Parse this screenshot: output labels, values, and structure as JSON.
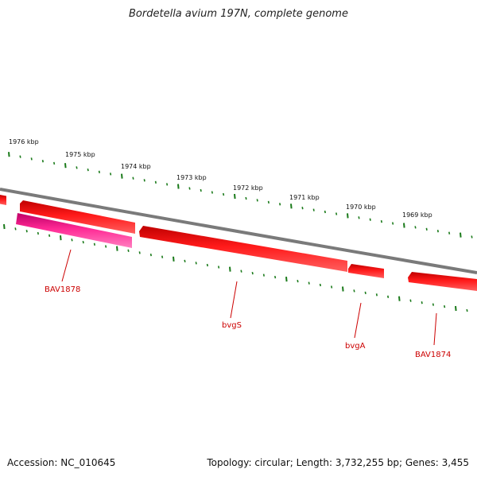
{
  "title": "Bordetella avium 197N, complete genome",
  "footer": {
    "accession": "Accession: NC_010645",
    "stats": "Topology: circular; Length: 3,732,255 bp; Genes: 3,455"
  },
  "ticks": [
    "1976 kbp",
    "1975 kbp",
    "1974 kbp",
    "1973 kbp",
    "1972 kbp",
    "1971 kbp",
    "1970 kbp",
    "1969 kbp"
  ],
  "genes": [
    "BAV1878",
    "bvgS",
    "bvgA",
    "BAV1874"
  ],
  "colors": {
    "backbone": "#808080",
    "gene": "#ee0000",
    "gene_highlight": "#e8157f",
    "tick": "#1a7a1a",
    "label": "#cc0000"
  }
}
